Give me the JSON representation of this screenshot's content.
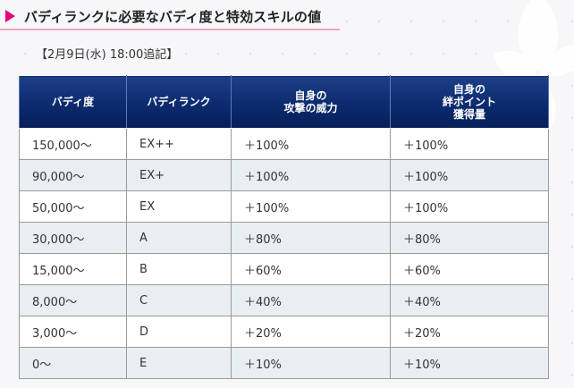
{
  "heading": {
    "title": "バディランクに必要なバディ度と特効スキルの値"
  },
  "note": "【2月9日(水) 18:00追記】",
  "table": {
    "headers": [
      [
        "バディ度"
      ],
      [
        "バディランク"
      ],
      [
        "自身の",
        "攻撃の威力"
      ],
      [
        "自身の",
        "絆ポイント",
        "獲得量"
      ]
    ],
    "rows": [
      [
        "150,000〜",
        "EX++",
        "＋100%",
        "＋100%"
      ],
      [
        "90,000〜",
        "EX+",
        "＋100%",
        "＋100%"
      ],
      [
        "50,000〜",
        "EX",
        "＋100%",
        "＋100%"
      ],
      [
        "30,000〜",
        "A",
        "＋80%",
        "＋80%"
      ],
      [
        "15,000〜",
        "B",
        "＋60%",
        "＋60%"
      ],
      [
        "8,000〜",
        "C",
        "＋40%",
        "＋40%"
      ],
      [
        "3,000〜",
        "D",
        "＋20%",
        "＋20%"
      ],
      [
        "0〜",
        "E",
        "＋10%",
        "＋10%"
      ]
    ]
  }
}
